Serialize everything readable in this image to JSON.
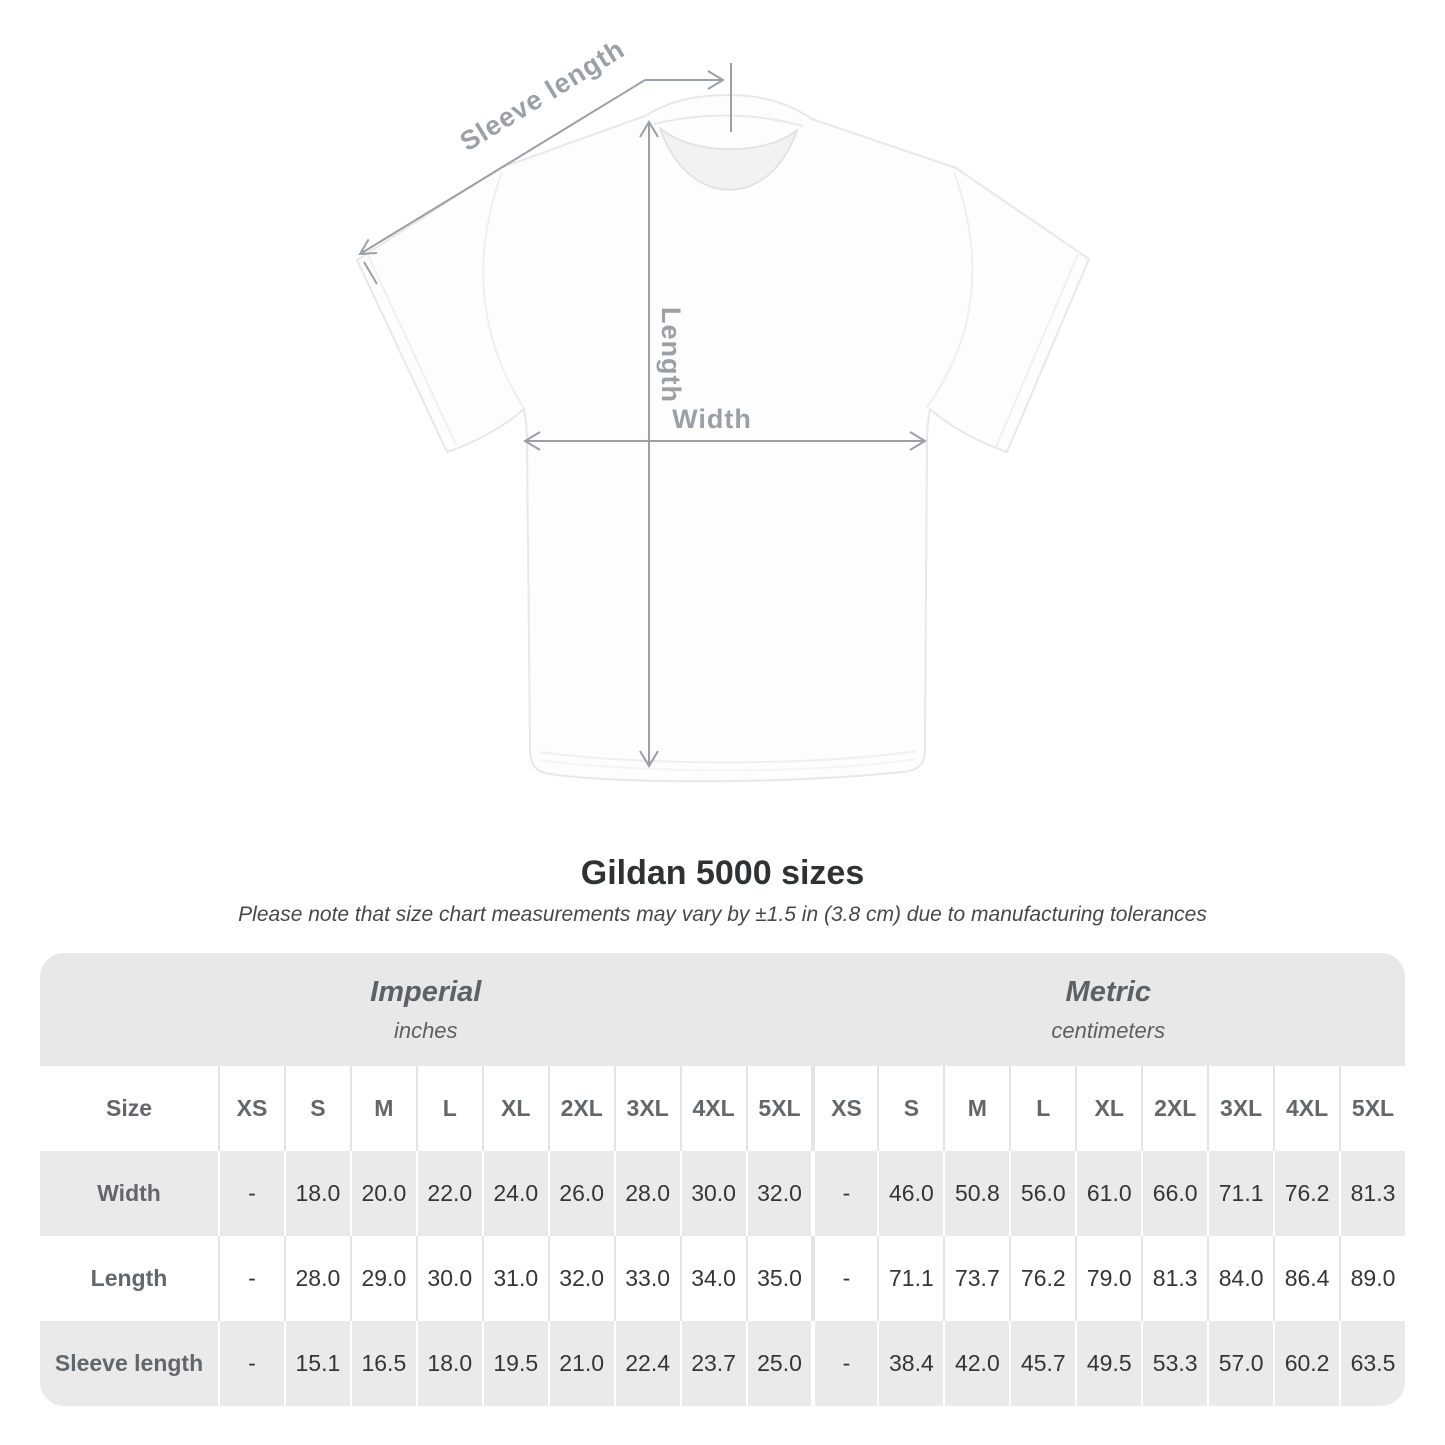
{
  "diagram": {
    "labels": {
      "sleeve_length": "Sleeve length",
      "length": "Length",
      "width": "Width"
    },
    "line_color": "#9aa0a5",
    "label_color": "#9aa0a5"
  },
  "chart_data": {
    "type": "table",
    "title": "Gildan 5000 sizes",
    "note": "Please note that size chart measurements may vary by ±1.5 in (3.8 cm) due to manufacturing tolerances",
    "column_groups": [
      {
        "label": "Imperial",
        "unit": "inches"
      },
      {
        "label": "Metric",
        "unit": "centimeters"
      }
    ],
    "size_header": "Size",
    "sizes": [
      "XS",
      "S",
      "M",
      "L",
      "XL",
      "2XL",
      "3XL",
      "4XL",
      "5XL"
    ],
    "rows": [
      {
        "label": "Width",
        "imperial": [
          "-",
          "18.0",
          "20.0",
          "22.0",
          "24.0",
          "26.0",
          "28.0",
          "30.0",
          "32.0"
        ],
        "metric": [
          "-",
          "46.0",
          "50.8",
          "56.0",
          "61.0",
          "66.0",
          "71.1",
          "76.2",
          "81.3"
        ]
      },
      {
        "label": "Length",
        "imperial": [
          "-",
          "28.0",
          "29.0",
          "30.0",
          "31.0",
          "32.0",
          "33.0",
          "34.0",
          "35.0"
        ],
        "metric": [
          "-",
          "71.1",
          "73.7",
          "76.2",
          "79.0",
          "81.3",
          "84.0",
          "86.4",
          "89.0"
        ]
      },
      {
        "label": "Sleeve length",
        "imperial": [
          "-",
          "15.1",
          "16.5",
          "18.0",
          "19.5",
          "21.0",
          "22.4",
          "23.7",
          "25.0"
        ],
        "metric": [
          "-",
          "38.4",
          "42.0",
          "45.7",
          "49.5",
          "53.3",
          "57.0",
          "60.2",
          "63.5"
        ]
      }
    ]
  },
  "colors": {
    "header_band": "#e8e8e8",
    "striped_row": "#eaeaea",
    "header_text": "#62676c",
    "value_text": "#333639",
    "title_text": "#2f3235"
  }
}
